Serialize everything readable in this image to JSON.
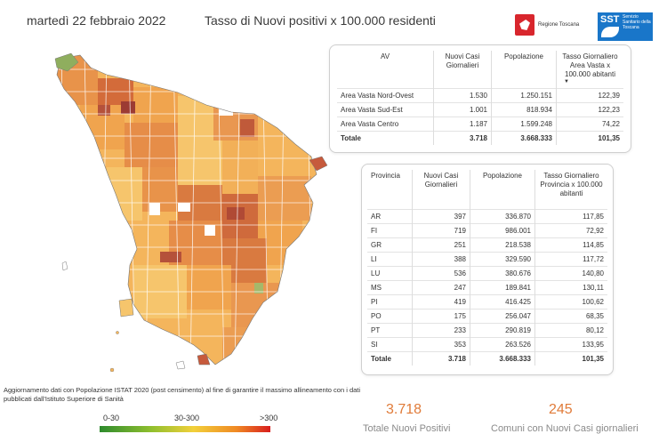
{
  "header": {
    "date": "martedì 22 febbraio 2022",
    "title": "Tasso di Nuovi positivi x 100.000 residenti",
    "logo_rt": "Regione Toscana",
    "logo_sst_abbr": "SST",
    "logo_sst_text": "Servizio Sanitario della Toscana"
  },
  "colors": {
    "accent": "#e07b39",
    "low": "#2e8b2e",
    "mid": "#f2d03a",
    "high": "#d81e1e"
  },
  "area_table": {
    "headers": [
      "AV",
      "Nuovi Casi Giornalieri",
      "Popolazione",
      "Tasso Giornaliero Area Vasta x 100.000 abitanti"
    ],
    "rows": [
      [
        "Area Vasta Nord-Ovest",
        "1.530",
        "1.250.151",
        "122,39"
      ],
      [
        "Area Vasta Sud-Est",
        "1.001",
        "818.934",
        "122,23"
      ],
      [
        "Area Vasta Centro",
        "1.187",
        "1.599.248",
        "74,22"
      ]
    ],
    "total": [
      "Totale",
      "3.718",
      "3.668.333",
      "101,35"
    ]
  },
  "province_table": {
    "headers": [
      "Provincia",
      "Nuovi Casi Giornalieri",
      "Popolazione",
      "Tasso Giornaliero Provincia x 100.000 abitanti"
    ],
    "rows": [
      [
        "AR",
        "397",
        "336.870",
        "117,85"
      ],
      [
        "FI",
        "719",
        "986.001",
        "72,92"
      ],
      [
        "GR",
        "251",
        "218.538",
        "114,85"
      ],
      [
        "LI",
        "388",
        "329.590",
        "117,72"
      ],
      [
        "LU",
        "536",
        "380.676",
        "140,80"
      ],
      [
        "MS",
        "247",
        "189.841",
        "130,11"
      ],
      [
        "PI",
        "419",
        "416.425",
        "100,62"
      ],
      [
        "PO",
        "175",
        "256.047",
        "68,35"
      ],
      [
        "PT",
        "233",
        "290.819",
        "80,12"
      ],
      [
        "SI",
        "353",
        "263.526",
        "133,95"
      ]
    ],
    "total": [
      "Totale",
      "3.718",
      "3.668.333",
      "101,35"
    ]
  },
  "footer": {
    "note": "Aggiornamento dati con Popolazione ISTAT 2020 (post censimento) al fine di garantire il massimo allineamento con i dati pubblicati dall'Istituto Superiore di Sanità",
    "legend": [
      "0-30",
      "30-300",
      ">300"
    ],
    "kpi_cases_value": "3.718",
    "kpi_cases_label": "Totale Nuovi Positivi",
    "kpi_municipalities_value": "245",
    "kpi_municipalities_label": "Comuni con Nuovi Casi giornalieri"
  }
}
